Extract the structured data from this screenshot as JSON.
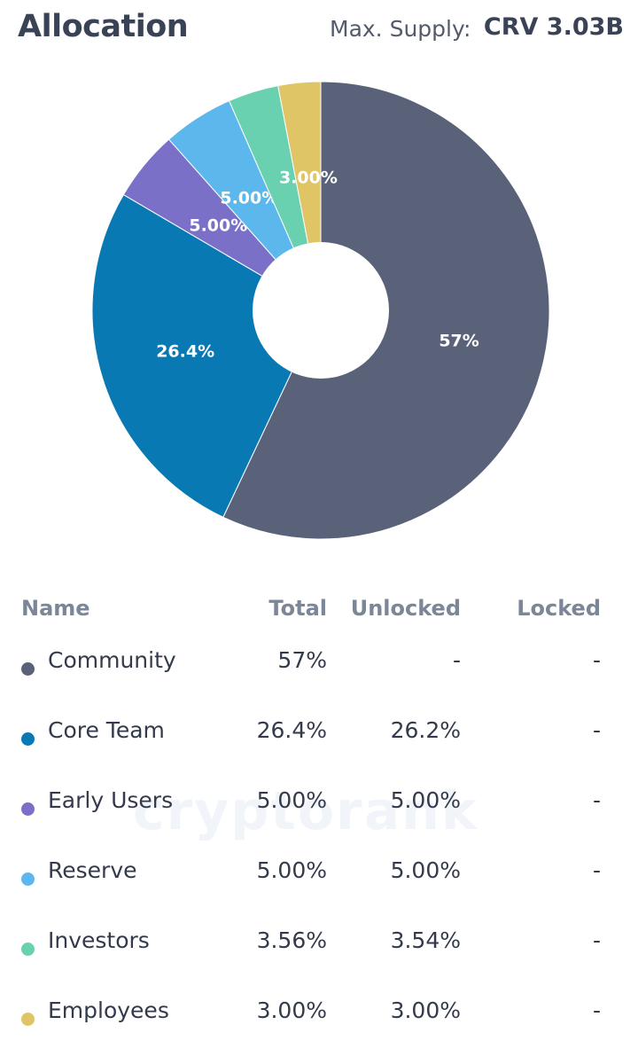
{
  "header": {
    "title": "Allocation",
    "supply_label": "Max. Supply:",
    "supply_value": "CRV 3.03B"
  },
  "watermark": "cryptorank",
  "chart_data": {
    "type": "pie",
    "donut": true,
    "slices": [
      {
        "label": "Community",
        "value": 57,
        "display": "57%",
        "color": "#5a6279"
      },
      {
        "label": "Core Team",
        "value": 26.4,
        "display": "26.4%",
        "color": "#0979b4"
      },
      {
        "label": "Early Users",
        "value": 5.0,
        "display": "5.00%",
        "color": "#7b70c8"
      },
      {
        "label": "Reserve",
        "value": 5.0,
        "display": "5.00%",
        "color": "#5cb8ec"
      },
      {
        "label": "Investors",
        "value": 3.56,
        "display": "",
        "color": "#69d1b0"
      },
      {
        "label": "Employees",
        "value": 3.0,
        "display": "3.00%",
        "color": "#dfc566"
      }
    ]
  },
  "table": {
    "headers": {
      "name": "Name",
      "total": "Total",
      "unlocked": "Unlocked",
      "locked": "Locked"
    },
    "rows": [
      {
        "name": "Community",
        "total": "57%",
        "unlocked": "-",
        "locked": "-",
        "color": "#5a6279"
      },
      {
        "name": "Core Team",
        "total": "26.4%",
        "unlocked": "26.2%",
        "locked": "-",
        "color": "#0979b4"
      },
      {
        "name": "Early Users",
        "total": "5.00%",
        "unlocked": "5.00%",
        "locked": "-",
        "color": "#7b70c8"
      },
      {
        "name": "Reserve",
        "total": "5.00%",
        "unlocked": "5.00%",
        "locked": "-",
        "color": "#5cb8ec"
      },
      {
        "name": "Investors",
        "total": "3.56%",
        "unlocked": "3.54%",
        "locked": "-",
        "color": "#69d1b0"
      },
      {
        "name": "Employees",
        "total": "3.00%",
        "unlocked": "3.00%",
        "locked": "-",
        "color": "#dfc566"
      }
    ]
  }
}
